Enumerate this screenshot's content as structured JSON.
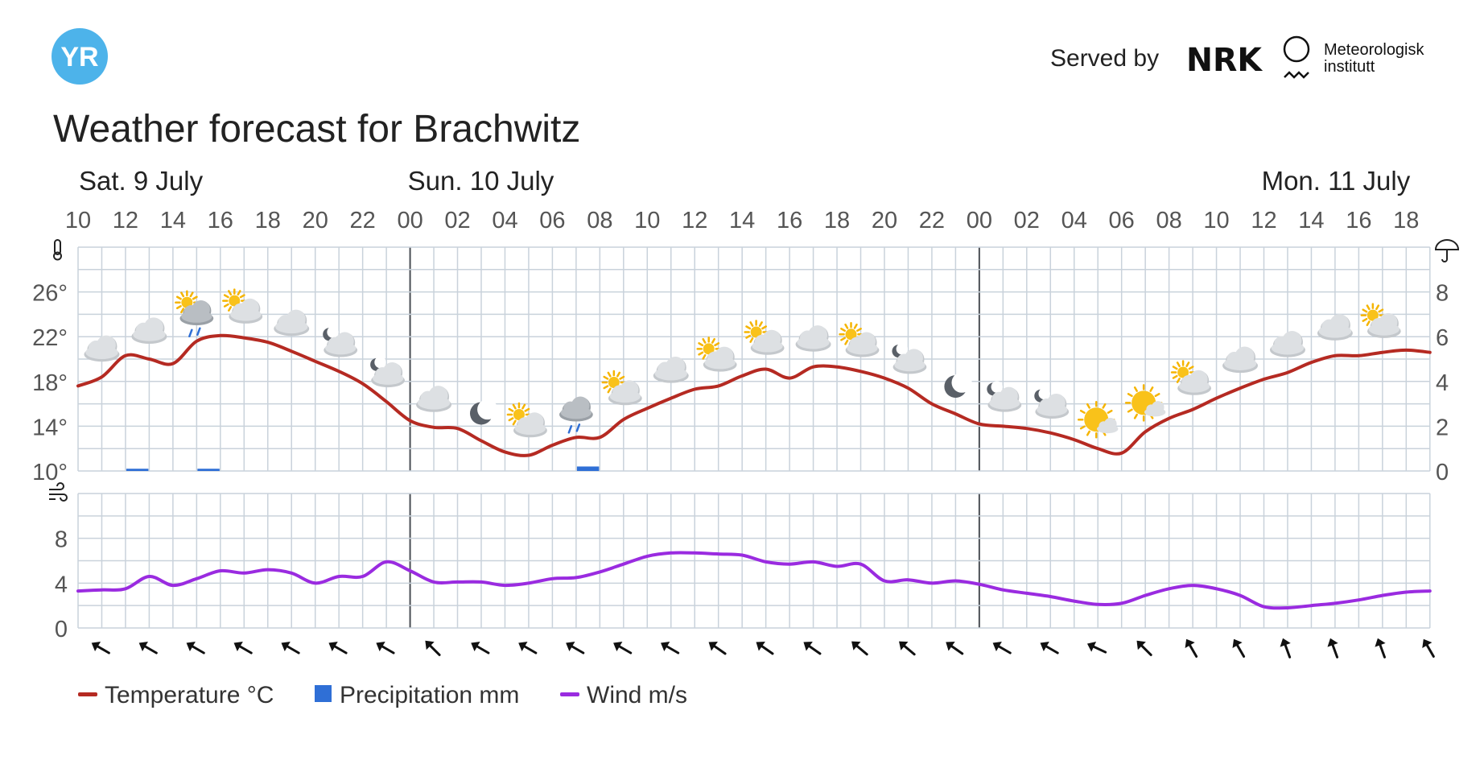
{
  "header": {
    "logo_text": "YR",
    "served_by": "Served by",
    "nrk_logo": "NRK",
    "met_line1": "Meteorologisk",
    "met_line2": "institutt",
    "title": "Weather forecast for Brachwitz"
  },
  "days": [
    "Sat. 9 July",
    "Sun. 10 July",
    "Mon. 11 July"
  ],
  "hour_labels": [
    "10",
    "12",
    "14",
    "16",
    "18",
    "20",
    "22",
    "00",
    "02",
    "04",
    "06",
    "08",
    "10",
    "12",
    "14",
    "16",
    "18",
    "20",
    "22",
    "00",
    "02",
    "04",
    "06",
    "08",
    "10",
    "12",
    "14",
    "16",
    "18"
  ],
  "icons": {
    "temperature_axis": "thermometer-icon",
    "precipitation_axis": "umbrella-icon",
    "wind_axis": "wind-icon"
  },
  "legend": [
    {
      "label": "Temperature °C",
      "color": "#b52a22",
      "kind": "line"
    },
    {
      "label": "Precipitation mm",
      "color": "#2f6fd6",
      "kind": "box"
    },
    {
      "label": "Wind m/s",
      "color": "#9a2be0",
      "kind": "line"
    }
  ],
  "colors": {
    "temperature": "#b52a22",
    "precipitation": "#2f6fd6",
    "wind": "#9a2be0",
    "grid": "#c9d2db",
    "yr_logo": "#4db3ea"
  },
  "chart_data": [
    {
      "type": "line",
      "title": "",
      "x_unit": "hours from Sat. 9 July 10:00",
      "ylabel_left": "°C",
      "ylabel_right": "mm",
      "ylim": [
        10,
        30
      ],
      "y2lim": [
        0,
        10
      ],
      "y_ticks": [
        "10°",
        "14°",
        "18°",
        "22°",
        "26°"
      ],
      "y2_ticks": [
        "0",
        "2",
        "4",
        "6",
        "8"
      ],
      "grid": true,
      "series": [
        {
          "name": "Temperature °C",
          "x": [
            0,
            1,
            2,
            3,
            4,
            5,
            6,
            7,
            8,
            9,
            10,
            11,
            12,
            13,
            14,
            15,
            16,
            17,
            18,
            19,
            20,
            21,
            22,
            23,
            24,
            25,
            26,
            27,
            28,
            29,
            30,
            31,
            32,
            33,
            34,
            35,
            36,
            37,
            38,
            39,
            40,
            41,
            42,
            43,
            44,
            45,
            46,
            47,
            48,
            49,
            50,
            51,
            52,
            53,
            54,
            55,
            56,
            57
          ],
          "values": [
            17.6,
            18.4,
            20.3,
            20.0,
            19.6,
            21.6,
            22.1,
            21.9,
            21.5,
            20.7,
            19.8,
            18.9,
            17.8,
            16.2,
            14.5,
            13.9,
            13.8,
            12.7,
            11.7,
            11.4,
            12.3,
            13.0,
            13.0,
            14.6,
            15.6,
            16.5,
            17.3,
            17.6,
            18.5,
            19.1,
            18.3,
            19.3,
            19.3,
            18.9,
            18.3,
            17.4,
            16.0,
            15.1,
            14.2,
            14.0,
            13.8,
            13.4,
            12.8,
            12.0,
            11.6,
            13.5,
            14.7,
            15.5,
            16.5,
            17.4,
            18.2,
            18.8,
            19.7,
            20.3,
            20.3,
            20.6,
            20.8,
            20.6
          ]
        },
        {
          "name": "Precipitation mm",
          "kind": "bar",
          "x": [
            2,
            5,
            21
          ],
          "values": [
            0.1,
            0.1,
            0.2
          ]
        }
      ],
      "weather_symbols": [
        "cloudy",
        "cloudy",
        "partly-cloudy-rain",
        "partly-cloudy-day",
        "cloudy",
        "partly-cloudy-night",
        "partly-cloudy-night",
        "cloudy",
        "clear-night",
        "partly-cloudy-day",
        "cloudy-rain",
        "partly-cloudy-day",
        "cloudy",
        "partly-cloudy-day",
        "partly-cloudy-day",
        "cloudy",
        "partly-cloudy-day",
        "partly-cloudy-night",
        "clear-night",
        "partly-cloudy-night",
        "partly-cloudy-night",
        "fair-day",
        "fair-day",
        "partly-cloudy-day",
        "cloudy",
        "cloudy",
        "cloudy",
        "partly-cloudy-day"
      ]
    },
    {
      "type": "line",
      "title": "",
      "x_unit": "hours from Sat. 9 July 10:00",
      "ylabel": "m/s",
      "ylim": [
        0,
        12
      ],
      "y_ticks": [
        "0",
        "4",
        "8"
      ],
      "grid": true,
      "series": [
        {
          "name": "Wind m/s",
          "x": [
            0,
            1,
            2,
            3,
            4,
            5,
            6,
            7,
            8,
            9,
            10,
            11,
            12,
            13,
            14,
            15,
            16,
            17,
            18,
            19,
            20,
            21,
            22,
            23,
            24,
            25,
            26,
            27,
            28,
            29,
            30,
            31,
            32,
            33,
            34,
            35,
            36,
            37,
            38,
            39,
            40,
            41,
            42,
            43,
            44,
            45,
            46,
            47,
            48,
            49,
            50,
            51,
            52,
            53,
            54,
            55,
            56,
            57
          ],
          "values": [
            3.3,
            3.4,
            3.5,
            4.6,
            3.8,
            4.4,
            5.1,
            4.9,
            5.2,
            4.9,
            4.0,
            4.6,
            4.6,
            5.9,
            5.1,
            4.1,
            4.1,
            4.1,
            3.8,
            4.0,
            4.4,
            4.5,
            5.0,
            5.7,
            6.4,
            6.7,
            6.7,
            6.6,
            6.5,
            5.9,
            5.7,
            5.9,
            5.5,
            5.7,
            4.2,
            4.3,
            4.0,
            4.2,
            3.9,
            3.4,
            3.1,
            2.8,
            2.4,
            2.1,
            2.2,
            2.9,
            3.5,
            3.8,
            3.5,
            2.9,
            1.9,
            1.8,
            2.0,
            2.2,
            2.5,
            2.9,
            3.2,
            3.3
          ]
        }
      ],
      "wind_direction_deg": [
        300,
        300,
        300,
        300,
        300,
        300,
        300,
        315,
        300,
        300,
        300,
        300,
        300,
        305,
        305,
        305,
        310,
        310,
        305,
        300,
        300,
        295,
        315,
        330,
        330,
        340,
        340,
        340,
        330
      ]
    }
  ]
}
